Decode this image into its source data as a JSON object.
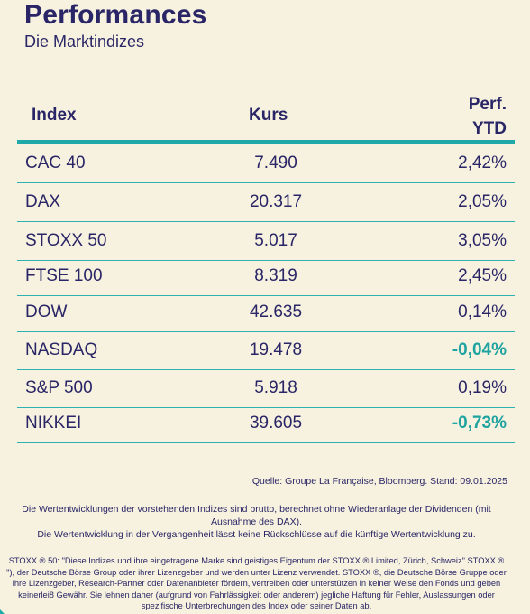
{
  "header": {
    "title": "Performances",
    "subtitle": "Die Marktindizes"
  },
  "table": {
    "columns": {
      "index": "Index",
      "kurs": "Kurs",
      "perf_line1": "Perf.",
      "perf_line2": "YTD"
    },
    "rows": [
      {
        "index": "CAC 40",
        "kurs": "7.490",
        "perf": "2,42%"
      },
      {
        "index": "DAX",
        "kurs": "20.317",
        "perf": "2,05%"
      },
      {
        "index": "STOXX 50",
        "kurs": "5.017",
        "perf": "3,05%"
      },
      {
        "index": "FTSE 100",
        "kurs": "8.319",
        "perf": "2,45%"
      },
      {
        "index": "DOW",
        "kurs": "42.635",
        "perf": "0,14%"
      },
      {
        "index": "NASDAQ",
        "kurs": "19.478",
        "perf": "-0,04%"
      },
      {
        "index": "S&P 500",
        "kurs": "5.918",
        "perf": "0,19%"
      },
      {
        "index": "NIKKEI",
        "kurs": "39.605",
        "perf": "-0,73%"
      }
    ]
  },
  "footer": {
    "source": "Quelle: Groupe La Française, Bloomberg. Stand: 09.01.2025",
    "note_line1": "Die Wertentwicklungen der vorstehenden Indizes sind brutto, berechnet ohne Wiederanlage der Dividenden (mit Ausnahme des DAX).",
    "note_line2": "Die Wertentwicklung in der Vergangenheit lässt keine Rückschlüsse auf die künftige Wertentwicklung zu.",
    "disclaimer": "STOXX ® 50: \"Diese Indizes und ihre eingetragene Marke sind geistiges Eigentum der STOXX ® Limited, Zürich, Schweiz\" STOXX ® \"), der Deutsche Börse Group oder ihrer Lizenzgeber und werden unter Lizenz verwendet. STOXX ®, die Deutsche Börse Gruppe oder ihre Lizenzgeber, Research-Partner oder Datenanbieter fördern, vertreiben oder unterstützen in keiner Weise den Fonds und geben keinerlei8 Gewähr. Sie lehnen daher (aufgrund von Fahrlässigkeit oder anderem) jegliche Haftung für Fehler, Auslassungen oder spezifische Unterbrechungen des Index oder seiner Daten ab."
  },
  "colors": {
    "text": "#2a2566",
    "accent": "#20a9a9",
    "negative": "#1fa3a0",
    "background": "#f6f2df"
  }
}
